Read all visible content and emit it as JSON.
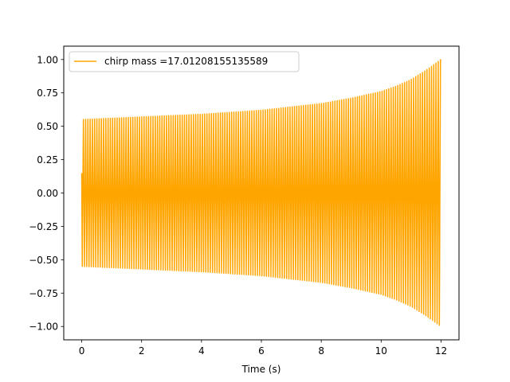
{
  "chart_data": {
    "type": "line",
    "xlabel": "Time (s)",
    "ylabel": "",
    "xlim": [
      -0.6,
      12.6
    ],
    "ylim": [
      -1.1,
      1.1
    ],
    "x_ticks": [
      0,
      2,
      4,
      6,
      8,
      10,
      12
    ],
    "x_tick_labels": [
      "0",
      "2",
      "4",
      "6",
      "8",
      "10",
      "12"
    ],
    "y_ticks": [
      -1.0,
      -0.75,
      -0.5,
      -0.25,
      0.0,
      0.25,
      0.5,
      0.75,
      1.0
    ],
    "y_tick_labels": [
      "−1.00",
      "−0.75",
      "−0.50",
      "−0.25",
      "0.00",
      "0.25",
      "0.50",
      "0.75",
      "1.00"
    ],
    "grid": false,
    "legend_position": "top-left",
    "series": [
      {
        "name": "chirp mass =17.01208155135589",
        "color": "#ffa500",
        "envelope": {
          "x": [
            0,
            2,
            4,
            6,
            8,
            9,
            10,
            10.5,
            11,
            11.5,
            12
          ],
          "amplitude": [
            0.55,
            0.57,
            0.59,
            0.62,
            0.67,
            0.71,
            0.76,
            0.8,
            0.85,
            0.92,
            1.0
          ]
        },
        "cycles": 160,
        "start_value": 0.15,
        "end_value": 1.0
      }
    ]
  }
}
